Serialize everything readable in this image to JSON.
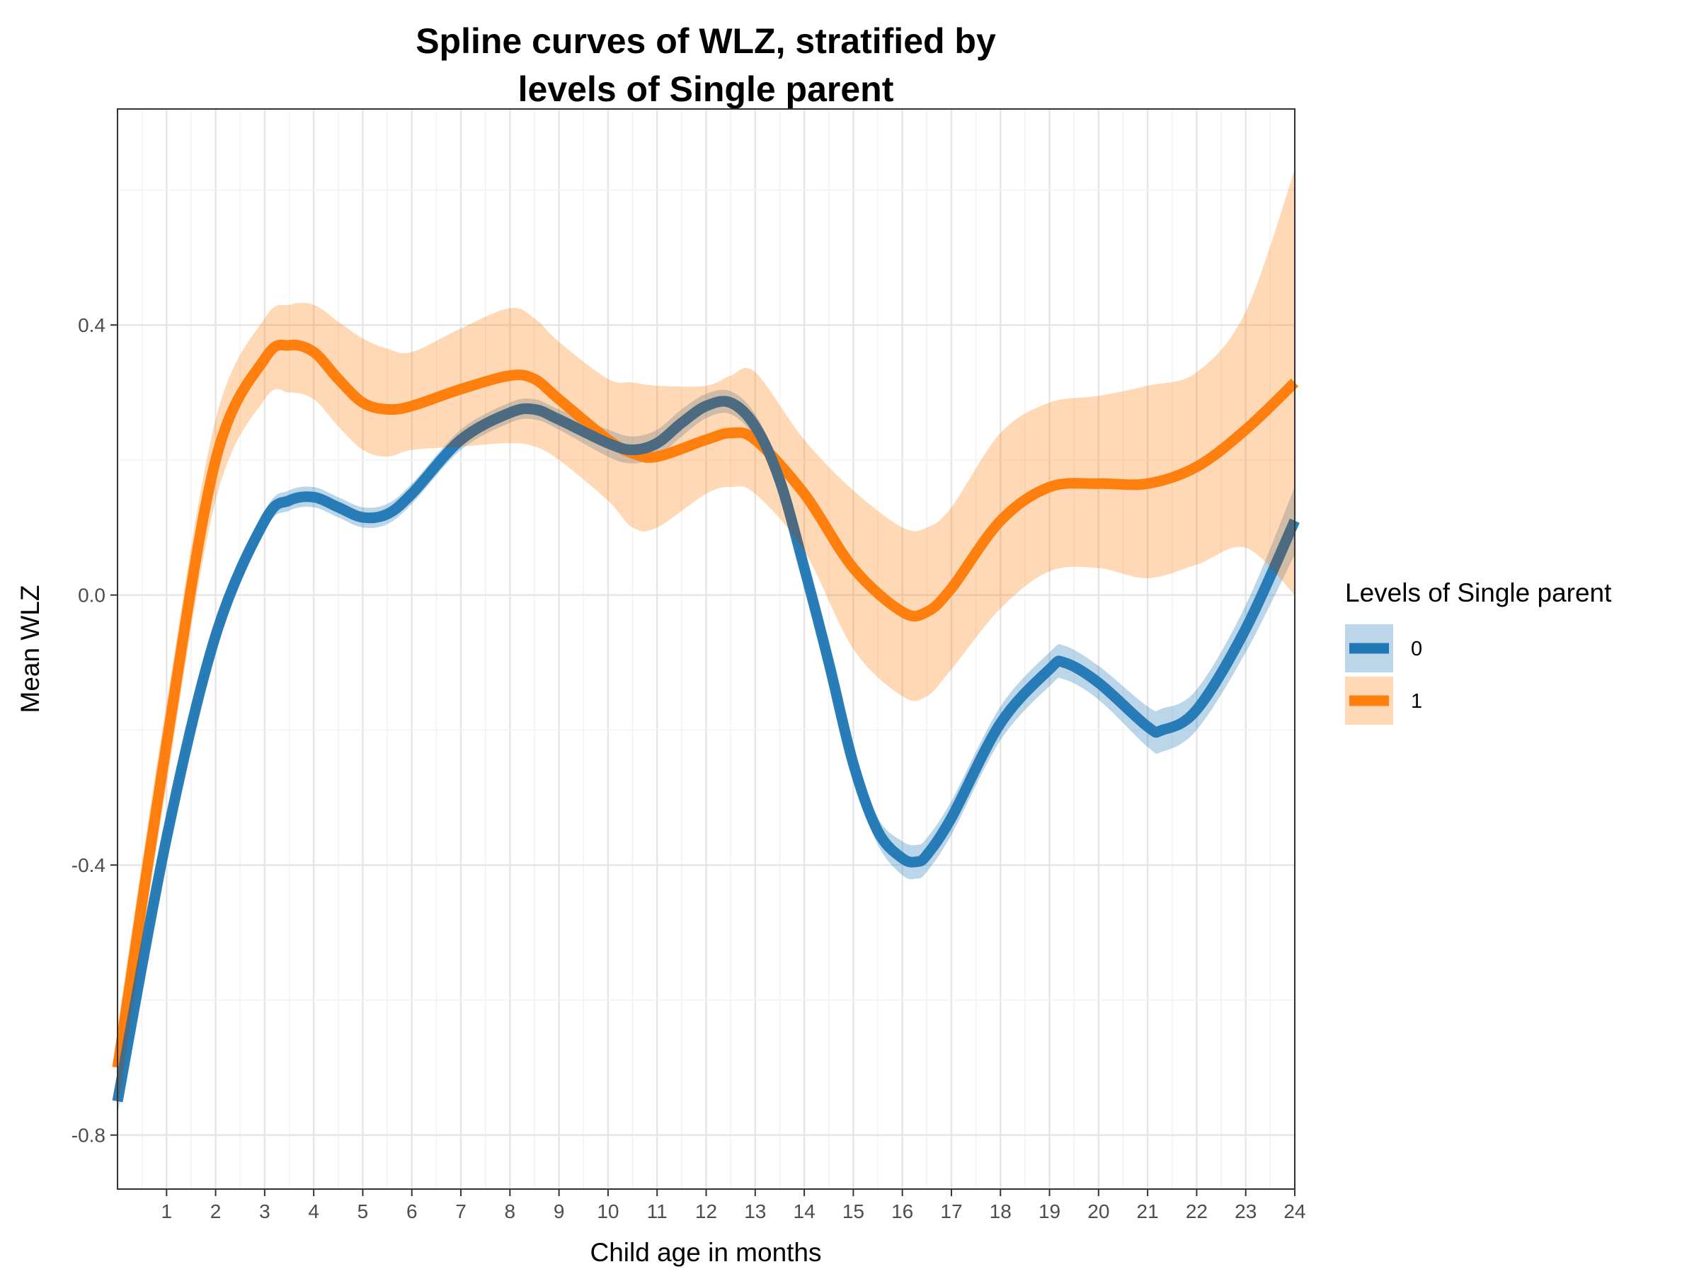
{
  "chart_data": {
    "type": "line",
    "title": [
      "Spline curves of WLZ, stratified by",
      "levels of Single parent"
    ],
    "xlabel": "Child age in months",
    "ylabel": "Mean WLZ",
    "xlim": [
      0,
      24
    ],
    "ylim": [
      -0.88,
      0.72
    ],
    "x_ticks": [
      1,
      2,
      3,
      4,
      5,
      6,
      7,
      8,
      9,
      10,
      11,
      12,
      13,
      14,
      15,
      16,
      17,
      18,
      19,
      20,
      21,
      22,
      23,
      24
    ],
    "y_ticks": [
      -0.8,
      -0.4,
      0.0,
      0.4
    ],
    "y_tick_labels": [
      "-0.8",
      "-0.4",
      "0.0",
      "0.4"
    ],
    "grid": true,
    "legend": {
      "title": "Levels of Single parent",
      "position": "right"
    },
    "series": [
      {
        "name": "0",
        "color": "#1f77b4",
        "x": [
          0,
          1,
          2,
          3,
          3.5,
          4,
          4.5,
          5,
          5.5,
          6,
          7,
          8,
          8.5,
          9,
          10,
          10.5,
          11,
          11.5,
          12,
          12.5,
          13,
          13.5,
          14,
          14.5,
          15,
          15.5,
          16,
          16.3,
          16.5,
          17,
          18,
          19,
          19.3,
          20,
          21,
          21.3,
          22,
          23,
          24
        ],
        "y": [
          -0.75,
          -0.36,
          -0.06,
          0.11,
          0.14,
          0.145,
          0.13,
          0.115,
          0.12,
          0.15,
          0.23,
          0.27,
          0.275,
          0.26,
          0.225,
          0.215,
          0.225,
          0.255,
          0.28,
          0.285,
          0.25,
          0.17,
          0.04,
          -0.1,
          -0.25,
          -0.35,
          -0.39,
          -0.395,
          -0.385,
          -0.33,
          -0.19,
          -0.11,
          -0.1,
          -0.13,
          -0.195,
          -0.2,
          -0.17,
          -0.05,
          0.11
        ],
        "lower": [
          -0.77,
          -0.38,
          -0.08,
          0.095,
          0.125,
          0.13,
          0.115,
          0.1,
          0.105,
          0.135,
          0.215,
          0.255,
          0.26,
          0.245,
          0.205,
          0.195,
          0.205,
          0.235,
          0.262,
          0.268,
          0.232,
          0.152,
          0.02,
          -0.12,
          -0.27,
          -0.37,
          -0.415,
          -0.42,
          -0.41,
          -0.355,
          -0.215,
          -0.135,
          -0.125,
          -0.155,
          -0.225,
          -0.232,
          -0.2,
          -0.085,
          0.06
        ],
        "upper": [
          -0.73,
          -0.34,
          -0.04,
          0.125,
          0.155,
          0.16,
          0.145,
          0.13,
          0.135,
          0.165,
          0.245,
          0.285,
          0.29,
          0.275,
          0.245,
          0.235,
          0.245,
          0.275,
          0.298,
          0.302,
          0.268,
          0.188,
          0.06,
          -0.08,
          -0.23,
          -0.33,
          -0.365,
          -0.37,
          -0.36,
          -0.305,
          -0.165,
          -0.085,
          -0.075,
          -0.105,
          -0.165,
          -0.168,
          -0.14,
          -0.015,
          0.16
        ]
      },
      {
        "name": "1",
        "color": "#ff7f0e",
        "x": [
          0,
          1,
          2,
          3,
          3.5,
          4,
          4.5,
          5,
          5.5,
          6,
          7,
          8,
          8.5,
          9,
          10,
          10.5,
          11,
          12,
          12.5,
          13,
          14,
          15,
          16,
          16.5,
          17,
          18,
          19,
          20,
          21,
          22,
          23,
          24
        ],
        "y": [
          -0.7,
          -0.22,
          0.2,
          0.35,
          0.37,
          0.36,
          0.32,
          0.285,
          0.275,
          0.28,
          0.305,
          0.325,
          0.32,
          0.29,
          0.23,
          0.21,
          0.205,
          0.23,
          0.24,
          0.23,
          0.15,
          0.04,
          -0.025,
          -0.025,
          0.01,
          0.11,
          0.16,
          0.165,
          0.165,
          0.19,
          0.245,
          0.315
        ],
        "lower": [
          -0.76,
          -0.28,
          0.14,
          0.29,
          0.3,
          0.29,
          0.25,
          0.215,
          0.205,
          0.215,
          0.22,
          0.225,
          0.22,
          0.2,
          0.14,
          0.1,
          0.1,
          0.15,
          0.16,
          0.15,
          0.065,
          -0.08,
          -0.15,
          -0.15,
          -0.11,
          -0.02,
          0.035,
          0.04,
          0.025,
          0.045,
          0.07,
          0.0
        ],
        "upper": [
          -0.64,
          -0.16,
          0.26,
          0.41,
          0.43,
          0.43,
          0.405,
          0.38,
          0.365,
          0.36,
          0.395,
          0.425,
          0.41,
          0.375,
          0.32,
          0.315,
          0.31,
          0.31,
          0.325,
          0.33,
          0.23,
          0.155,
          0.1,
          0.1,
          0.13,
          0.24,
          0.285,
          0.295,
          0.31,
          0.33,
          0.42,
          0.63
        ]
      }
    ]
  }
}
